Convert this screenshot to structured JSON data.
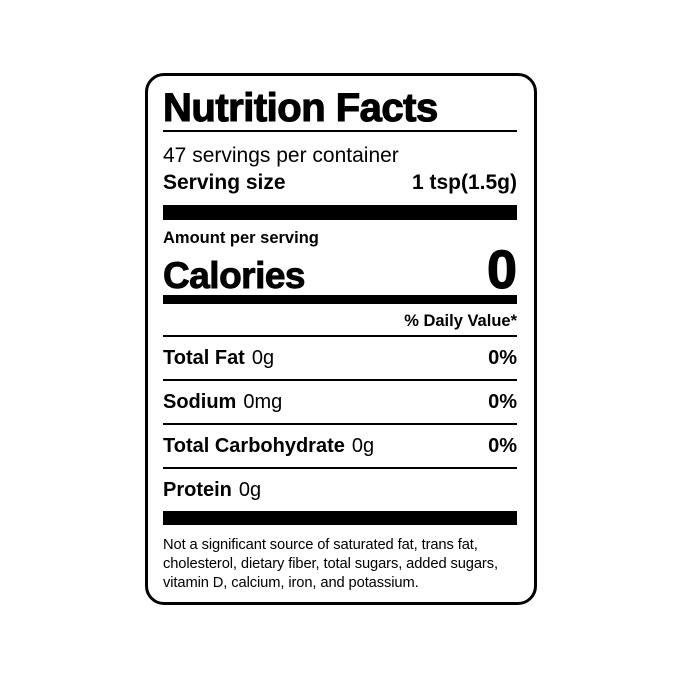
{
  "label": {
    "title": "Nutrition Facts",
    "servings_per_container": "47 servings per container",
    "serving_size": {
      "label": "Serving size",
      "value": "1 tsp(1.5g)"
    },
    "amount_per_serving": "Amount per serving",
    "calories": {
      "label": "Calories",
      "value": "0"
    },
    "daily_value_header": "% Daily Value*",
    "nutrients": [
      {
        "name": "Total Fat",
        "amount": "0g",
        "daily_value": "0%"
      },
      {
        "name": "Sodium",
        "amount": "0mg",
        "daily_value": "0%"
      },
      {
        "name": "Total Carbohydrate",
        "amount": "0g",
        "daily_value": "0%"
      },
      {
        "name": "Protein",
        "amount": "0g",
        "daily_value": ""
      }
    ],
    "footnote": "Not a significant source of saturated fat, trans fat, cholesterol, dietary fiber, total sugars, added sugars, vitamin D, calcium, iron, and potassium.",
    "colors": {
      "ink": "#000000",
      "background": "#ffffff"
    }
  }
}
